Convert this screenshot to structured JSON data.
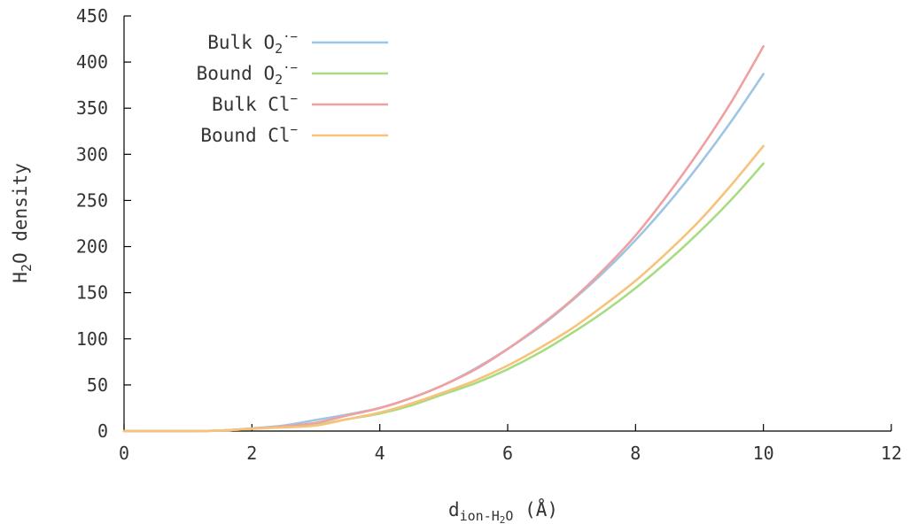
{
  "chart_data": {
    "type": "line",
    "title": "",
    "xlabel": {
      "base": "d",
      "sub_pre": "ion-H",
      "sub_num": "2",
      "sub_post": "O",
      "unit": " (Å)"
    },
    "ylabel": {
      "pre": "H",
      "sub": "2",
      "post": "O density"
    },
    "xlim": [
      0,
      12
    ],
    "ylim": [
      0,
      450
    ],
    "xticks": [
      0,
      2,
      4,
      6,
      8,
      10,
      12
    ],
    "xtick_labels": [
      "0",
      "2",
      "4",
      "6",
      "8",
      "10",
      "12"
    ],
    "yticks": [
      0,
      50,
      100,
      150,
      200,
      250,
      300,
      350,
      400,
      450
    ],
    "ytick_labels": [
      "0",
      "50",
      "100",
      "150",
      "200",
      "250",
      "300",
      "350",
      "400",
      "450"
    ],
    "grid": false,
    "legend_position": "top-left",
    "series": [
      {
        "name": {
          "text": "Bulk O",
          "sub": "2",
          "sup": "·−"
        },
        "color": "#9ec5e3",
        "x": [
          0,
          1,
          1.5,
          2,
          2.5,
          3,
          3.5,
          4,
          4.5,
          5,
          5.5,
          6,
          6.5,
          7,
          7.5,
          8,
          8.5,
          9,
          9.5,
          10
        ],
        "y": [
          0,
          0,
          0.5,
          3,
          6,
          12,
          18,
          25,
          36,
          50,
          68,
          89,
          113,
          141,
          172,
          207,
          246,
          289,
          336,
          387
        ]
      },
      {
        "name": {
          "text": "Bound O",
          "sub": "2",
          "sup": "·−"
        },
        "color": "#a8dc82",
        "x": [
          0,
          1,
          1.5,
          2,
          2.5,
          3,
          3.5,
          4,
          4.5,
          5,
          5.5,
          6,
          6.5,
          7,
          7.5,
          8,
          8.5,
          9,
          9.5,
          10
        ],
        "y": [
          0,
          0,
          0.5,
          2.5,
          5,
          7,
          13,
          19,
          28,
          40,
          52,
          67,
          85,
          106,
          129,
          155,
          184,
          216,
          251,
          290
        ]
      },
      {
        "name": {
          "text": "Bulk Cl",
          "sub": "",
          "sup": "−"
        },
        "color": "#f0a0a0",
        "x": [
          0,
          1,
          1.5,
          2,
          2.5,
          3,
          3.5,
          4,
          4.5,
          5,
          5.5,
          6,
          6.5,
          7,
          7.5,
          8,
          8.5,
          9,
          9.5,
          10
        ],
        "y": [
          0,
          0,
          0.5,
          2.5,
          5,
          9,
          17,
          25,
          36,
          50,
          67,
          89,
          114,
          142,
          175,
          212,
          256,
          304,
          357,
          417
        ]
      },
      {
        "name": {
          "text": "Bound Cl",
          "sub": "",
          "sup": "−"
        },
        "color": "#f7c27a",
        "x": [
          0,
          1,
          1.5,
          2,
          2.5,
          3,
          3.5,
          4,
          4.5,
          5,
          5.5,
          6,
          6.5,
          7,
          7.5,
          8,
          8.5,
          9,
          9.5,
          10
        ],
        "y": [
          0,
          0,
          0.5,
          2.5,
          4,
          6,
          13,
          20,
          30,
          42,
          55,
          71,
          90,
          111,
          136,
          163,
          194,
          228,
          267,
          309
        ]
      }
    ]
  }
}
